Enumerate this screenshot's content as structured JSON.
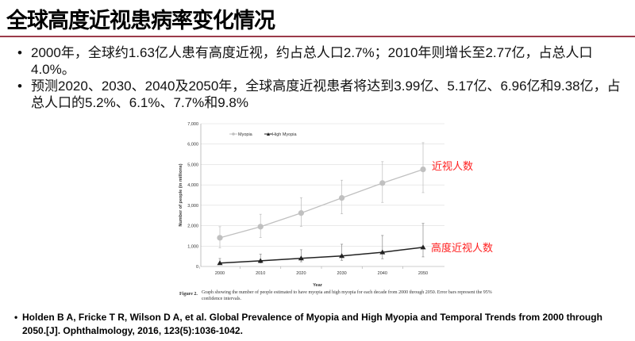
{
  "slide": {
    "title": "全球高度近视患病率变化情况",
    "bullets": [
      "2000年，全球约1.63亿人患有高度近视，约占总人口2.7%；2010年则增长至2.77亿，占总人口4.0%。",
      "预测2020、2030、2040及2050年，全球高度近视患者将达到3.99亿、5.17亿、6.96亿和9.38亿，占总人口的5.2%、6.1%、7.7%和9.8%"
    ],
    "reference": "Holden B A, Fricke T R, Wilson D A, et al. Global Prevalence of Myopia and High Myopia and Temporal Trends from 2000 through 2050.[J]. Ophthalmology, 2016, 123(5):1036-1042.",
    "annotations": {
      "myopia": "近视人数",
      "high_myopia": "高度近视人数"
    },
    "caption_label": "Figure 2.",
    "caption": "Graph showing the number of people estimated to have myopia and high myopia for each decade from 2000 through 2050. Error bars represent the 95% confidence intervals."
  },
  "chart_data": {
    "type": "line",
    "xlabel": "Year",
    "ylabel": "Number of people (in millions)",
    "x": [
      2000,
      2010,
      2020,
      2030,
      2040,
      2050
    ],
    "ylim": [
      0,
      7000
    ],
    "yticks": [
      "0",
      "1,000",
      "2,000",
      "3,000",
      "4,000",
      "5,000",
      "6,000",
      "7,000"
    ],
    "grid": true,
    "legend": "top-left",
    "series": [
      {
        "name": "Myopia",
        "color": "#c0c0c0",
        "marker": "circle",
        "values": [
          1406,
          1950,
          2620,
          3360,
          4090,
          4760
        ],
        "lower": [
          920,
          1420,
          1970,
          2580,
          3140,
          3620
        ],
        "upper": [
          1950,
          2560,
          3370,
          4230,
          5140,
          6070
        ]
      },
      {
        "name": "High Myopia",
        "color": "#222222",
        "marker": "triangle",
        "values": [
          163,
          277,
          399,
          517,
          696,
          938
        ],
        "lower": [
          100,
          170,
          230,
          300,
          380,
          470
        ],
        "upper": [
          390,
          600,
          820,
          1090,
          1520,
          2110
        ]
      }
    ]
  }
}
